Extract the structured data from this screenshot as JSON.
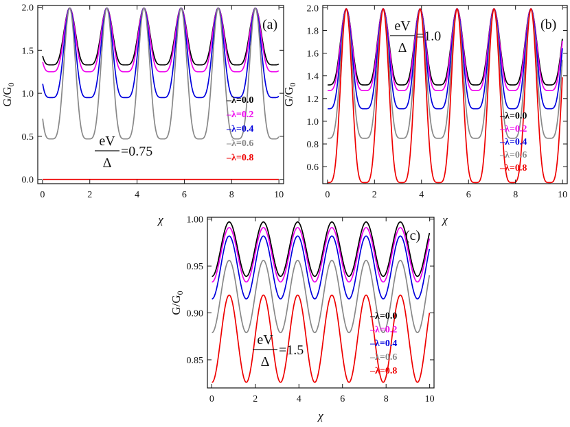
{
  "chart_data": [
    {
      "panel": "a",
      "type": "line",
      "panel_label": "(a)",
      "xlabel": "χ",
      "ylabel": "G/G",
      "ylabel_sub": "0",
      "xlim": [
        -0.2,
        10.2
      ],
      "ylim": [
        -0.05,
        2.02
      ],
      "xticks": [
        0,
        2,
        4,
        6,
        8,
        10
      ],
      "xtick_labels": [
        "0",
        "2",
        "4",
        "6",
        "8",
        "10"
      ],
      "yticks": [
        0.0,
        0.5,
        1.0,
        1.5,
        2.0
      ],
      "ytick_labels": [
        "0.0",
        "0.5",
        "1.0",
        "1.5",
        "2.0"
      ],
      "period": 1.571,
      "peak_positions": [
        1.15,
        2.72,
        4.29,
        5.86,
        7.43,
        9.0
      ],
      "annotation": {
        "numerator": "eV",
        "denominator": "Δ",
        "value": "=0.75"
      },
      "series": [
        {
          "name": "λ=0.0",
          "legend": "–λ=0.0",
          "color": "#000000",
          "min": 1.33,
          "max": 1.99,
          "power": 0.6
        },
        {
          "name": "λ=0.2",
          "legend": "–λ=0.2",
          "color": "#ee00ee",
          "min": 1.25,
          "max": 1.99,
          "power": 0.6
        },
        {
          "name": "λ=0.4",
          "legend": "–λ=0.4",
          "color": "#0000dd",
          "min": 0.95,
          "max": 1.99,
          "power": 0.6
        },
        {
          "name": "λ=0.6",
          "legend": "–λ=0.6",
          "color": "#888888",
          "min": 0.47,
          "max": 1.99,
          "power": 0.6
        },
        {
          "name": "λ=0.8",
          "legend": "–λ=0.8",
          "color": "#ee0000",
          "min": 0.0,
          "max": 0.0,
          "power": 1.0
        }
      ]
    },
    {
      "panel": "b",
      "type": "line",
      "panel_label": "(b)",
      "xlabel": "χ",
      "ylabel": "G/G",
      "ylabel_sub": "0",
      "xlim": [
        -0.2,
        10.2
      ],
      "ylim": [
        0.45,
        2.02
      ],
      "xticks": [
        0,
        2,
        4,
        6,
        8,
        10
      ],
      "xtick_labels": [
        "0",
        "2",
        "4",
        "6",
        "8",
        "10"
      ],
      "yticks": [
        0.6,
        0.8,
        1.0,
        1.2,
        1.4,
        1.6,
        1.8,
        2.0
      ],
      "ytick_labels": [
        "0.6",
        "0.8",
        "1.0",
        "1.2",
        "1.4",
        "1.6",
        "1.8",
        "2.0"
      ],
      "period": 1.571,
      "peak_positions": [
        0.8,
        2.37,
        3.94,
        5.51,
        7.08,
        8.65
      ],
      "annotation": {
        "numerator": "eV",
        "denominator": "Δ",
        "value": "=1.0"
      },
      "series": [
        {
          "name": "λ=0.0",
          "legend": "–λ=0.0",
          "color": "#000000",
          "min": 1.32,
          "max": 1.99,
          "power": 0.6
        },
        {
          "name": "λ=0.2",
          "legend": "–λ=0.2",
          "color": "#ee00ee",
          "min": 1.27,
          "max": 1.99,
          "power": 0.6
        },
        {
          "name": "λ=0.4",
          "legend": "–λ=0.4",
          "color": "#0000dd",
          "min": 1.11,
          "max": 1.99,
          "power": 0.6
        },
        {
          "name": "λ=0.6",
          "legend": "–λ=0.6",
          "color": "#888888",
          "min": 0.85,
          "max": 1.99,
          "power": 0.6
        },
        {
          "name": "λ=0.8",
          "legend": "–λ=0.8",
          "color": "#ee0000",
          "min": 0.46,
          "max": 1.99,
          "power": 0.6
        }
      ]
    },
    {
      "panel": "c",
      "type": "line",
      "panel_label": "(c)",
      "xlabel": "χ",
      "ylabel": "G/G",
      "ylabel_sub": "0",
      "xlim": [
        -0.2,
        10.2
      ],
      "ylim": [
        0.82,
        1.002
      ],
      "xticks": [
        0,
        2,
        4,
        6,
        8,
        10
      ],
      "xtick_labels": [
        "0",
        "2",
        "4",
        "6",
        "8",
        "10"
      ],
      "yticks": [
        0.85,
        0.9,
        0.95,
        1.0
      ],
      "ytick_labels": [
        "0.85",
        "0.90",
        "0.95",
        "1.00"
      ],
      "period": 1.571,
      "peak_positions": [
        0.8,
        2.37,
        3.94,
        5.51,
        7.08,
        8.65
      ],
      "annotation": {
        "numerator": "eV",
        "denominator": "Δ",
        "value": "=1.5"
      },
      "series": [
        {
          "name": "λ=0.0",
          "legend": "–λ=0.0",
          "color": "#000000",
          "min": 0.939,
          "max": 0.997,
          "power": 1.0
        },
        {
          "name": "λ=0.2",
          "legend": "–λ=0.2",
          "color": "#ee00ee",
          "min": 0.933,
          "max": 0.991,
          "power": 1.0
        },
        {
          "name": "λ=0.4",
          "legend": "–λ=0.4",
          "color": "#0000dd",
          "min": 0.915,
          "max": 0.982,
          "power": 1.0
        },
        {
          "name": "λ=0.6",
          "legend": "–λ=0.6",
          "color": "#888888",
          "min": 0.879,
          "max": 0.956,
          "power": 1.0
        },
        {
          "name": "λ=0.8",
          "legend": "–λ=0.8",
          "color": "#ee0000",
          "min": 0.826,
          "max": 0.919,
          "power": 1.0
        }
      ]
    }
  ]
}
